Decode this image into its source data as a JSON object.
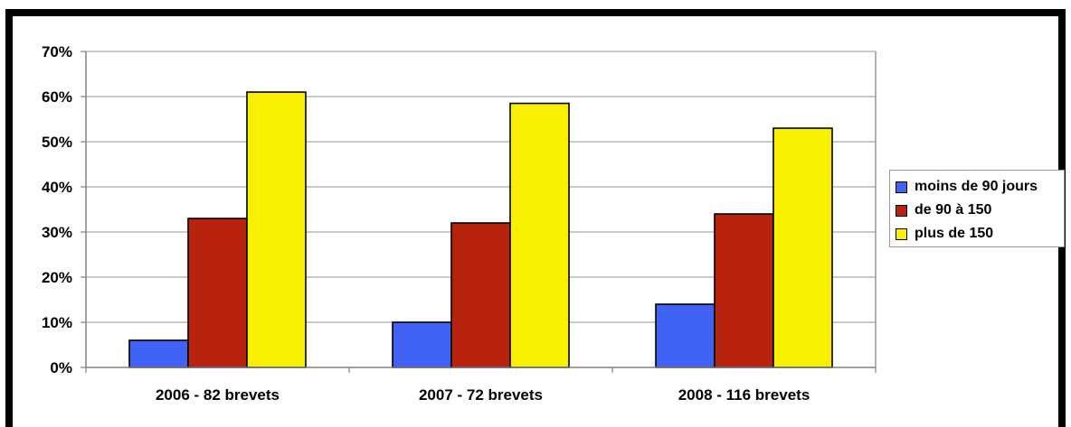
{
  "chart_data": {
    "type": "bar",
    "categories": [
      "2006 - 82 brevets",
      "2007 - 72 brevets",
      "2008 - 116 brevets"
    ],
    "series": [
      {
        "name": "moins de 90 jours",
        "color": "#4163f5",
        "values": [
          6,
          10,
          14
        ]
      },
      {
        "name": "de 90 à 150",
        "color": "#b8230e",
        "values": [
          33,
          32,
          34
        ]
      },
      {
        "name": "plus de 150",
        "color": "#f8f000",
        "values": [
          61,
          58.5,
          53
        ]
      }
    ],
    "ylim": [
      0,
      70
    ],
    "yticks": [
      "0%",
      "10%",
      "20%",
      "30%",
      "40%",
      "50%",
      "60%",
      "70%"
    ],
    "grid": true,
    "legend_position": "right"
  }
}
